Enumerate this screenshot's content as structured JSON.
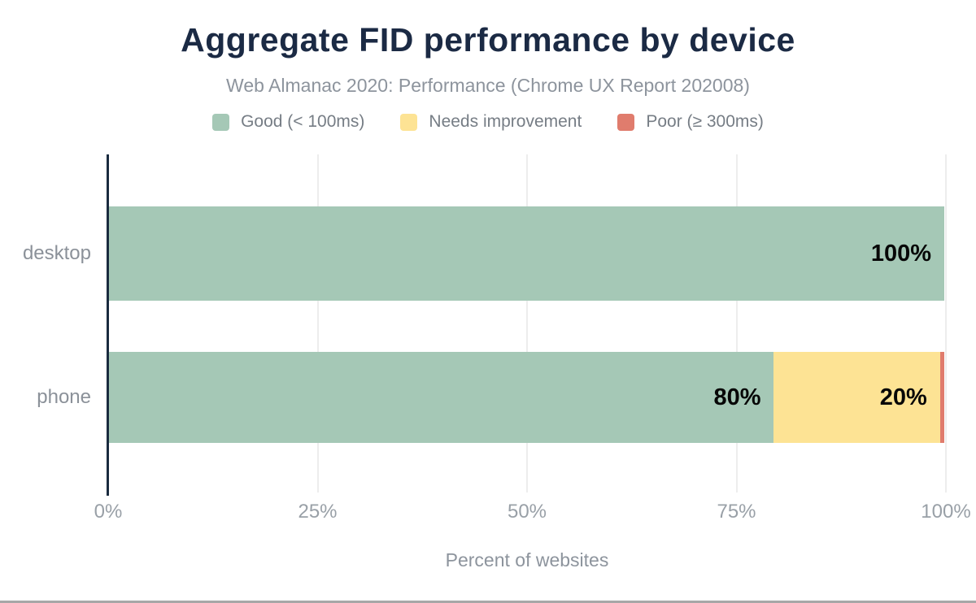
{
  "chart_data": {
    "type": "bar",
    "orientation": "horizontal",
    "stacked": true,
    "title": "Aggregate FID performance by device",
    "subtitle": "Web Almanac 2020: Performance (Chrome UX Report 202008)",
    "xlabel": "Percent of websites",
    "categories": [
      "desktop",
      "phone"
    ],
    "series": [
      {
        "name": "Good (< 100ms)",
        "color": "#a5c8b6",
        "values": [
          100,
          79.6
        ]
      },
      {
        "name": "Needs improvement",
        "color": "#fde394",
        "values": [
          0,
          19.9
        ]
      },
      {
        "name": "Poor (≥ 300ms)",
        "color": "#e07c6d",
        "values": [
          0,
          0.5
        ]
      }
    ],
    "data_labels": [
      [
        "100%",
        "",
        ""
      ],
      [
        "80%",
        "20%",
        ""
      ]
    ],
    "x_ticks": [
      "0%",
      "25%",
      "50%",
      "75%",
      "100%"
    ],
    "xlim": [
      0,
      100
    ],
    "grid": "vertical",
    "legend_position": "top"
  },
  "colors": {
    "title": "#1b2a44",
    "subtitle": "#8d949d",
    "axis_line": "#1a2b3f",
    "gridline": "#ededed",
    "good": "#a5c8b6",
    "needs_improvement": "#fde394",
    "poor": "#e07c6d",
    "data_label": "#070707"
  }
}
